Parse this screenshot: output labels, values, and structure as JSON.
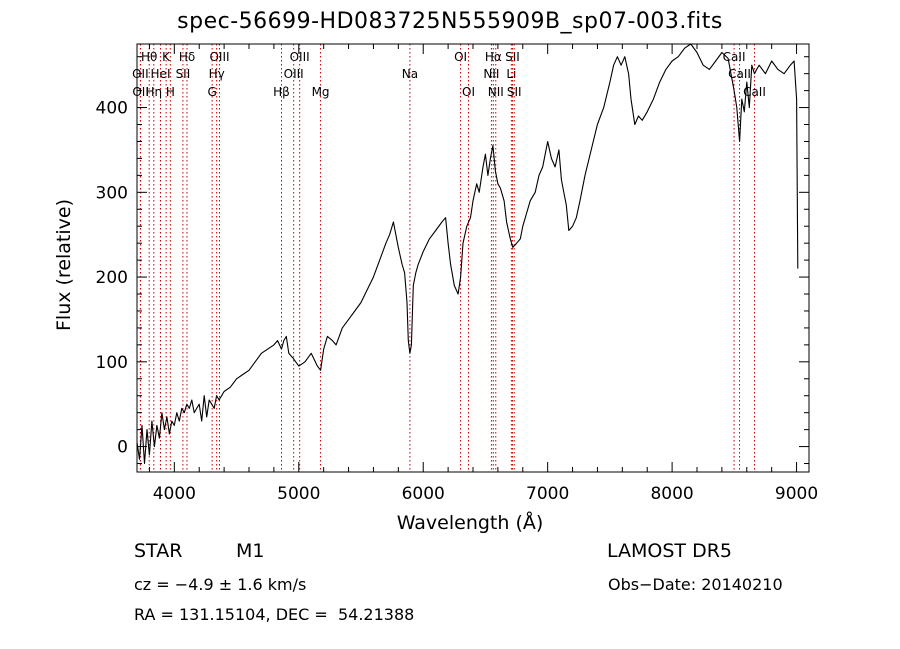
{
  "chart_data": {
    "type": "line",
    "title": "spec-56699-HD083725N555909B_sp07-003.fits",
    "xlabel": "Wavelength (Å)",
    "ylabel": "Flux (relative)",
    "xlim": [
      3700,
      9100
    ],
    "ylim": [
      -30,
      475
    ],
    "xticks": [
      4000,
      5000,
      6000,
      7000,
      8000,
      9000
    ],
    "yticks": [
      0,
      100,
      200,
      300,
      400
    ],
    "grid": false,
    "series": [
      {
        "color": "#000000",
        "x": [
          3700,
          3720,
          3740,
          3760,
          3780,
          3800,
          3820,
          3840,
          3860,
          3880,
          3900,
          3920,
          3940,
          3960,
          3980,
          4000,
          4020,
          4040,
          4060,
          4080,
          4100,
          4120,
          4140,
          4160,
          4180,
          4200,
          4220,
          4240,
          4260,
          4280,
          4300,
          4320,
          4340,
          4360,
          4380,
          4400,
          4450,
          4500,
          4550,
          4600,
          4650,
          4700,
          4750,
          4800,
          4830,
          4861,
          4880,
          4900,
          4920,
          4950,
          5000,
          5050,
          5100,
          5150,
          5175,
          5200,
          5230,
          5270,
          5300,
          5350,
          5400,
          5450,
          5500,
          5550,
          5600,
          5650,
          5700,
          5730,
          5760,
          5800,
          5830,
          5850,
          5870,
          5880,
          5893,
          5905,
          5920,
          5940,
          5960,
          6000,
          6050,
          6100,
          6150,
          6180,
          6200,
          6220,
          6250,
          6280,
          6300,
          6320,
          6350,
          6380,
          6400,
          6430,
          6450,
          6480,
          6500,
          6520,
          6540,
          6560,
          6580,
          6600,
          6620,
          6650,
          6670,
          6700,
          6720,
          6750,
          6780,
          6800,
          6830,
          6860,
          6900,
          6930,
          6960,
          7000,
          7030,
          7060,
          7090,
          7110,
          7130,
          7150,
          7170,
          7200,
          7230,
          7260,
          7300,
          7350,
          7400,
          7450,
          7500,
          7530,
          7560,
          7590,
          7620,
          7650,
          7670,
          7700,
          7730,
          7760,
          7800,
          7850,
          7900,
          7950,
          8000,
          8050,
          8100,
          8150,
          8200,
          8250,
          8300,
          8350,
          8400,
          8450,
          8498,
          8520,
          8542,
          8560,
          8580,
          8600,
          8620,
          8640,
          8662,
          8680,
          8700,
          8750,
          8800,
          8850,
          8900,
          8950,
          8980,
          9000,
          9010
        ],
        "y": [
          5,
          -15,
          25,
          -20,
          20,
          -10,
          30,
          0,
          25,
          10,
          40,
          20,
          35,
          15,
          30,
          25,
          40,
          30,
          45,
          40,
          50,
          45,
          55,
          40,
          45,
          50,
          30,
          60,
          35,
          55,
          50,
          45,
          60,
          55,
          60,
          65,
          70,
          80,
          85,
          90,
          100,
          110,
          115,
          120,
          125,
          115,
          125,
          130,
          110,
          105,
          95,
          100,
          110,
          95,
          90,
          115,
          130,
          125,
          120,
          140,
          150,
          160,
          170,
          185,
          200,
          220,
          240,
          250,
          265,
          235,
          215,
          205,
          170,
          125,
          110,
          120,
          190,
          205,
          215,
          230,
          245,
          255,
          265,
          270,
          240,
          215,
          190,
          180,
          200,
          240,
          260,
          270,
          290,
          310,
          300,
          330,
          345,
          320,
          340,
          355,
          325,
          310,
          305,
          290,
          265,
          245,
          235,
          240,
          245,
          260,
          275,
          290,
          300,
          320,
          330,
          360,
          340,
          330,
          350,
          315,
          300,
          285,
          255,
          260,
          270,
          290,
          320,
          350,
          380,
          400,
          430,
          450,
          460,
          450,
          460,
          440,
          410,
          380,
          390,
          385,
          395,
          410,
          430,
          445,
          455,
          460,
          470,
          475,
          465,
          450,
          445,
          455,
          465,
          458,
          420,
          400,
          360,
          410,
          395,
          430,
          400,
          450,
          440,
          445,
          450,
          440,
          455,
          445,
          440,
          450,
          455,
          410,
          210
        ]
      }
    ],
    "lines": [
      {
        "label": "Hθ",
        "x": 3798,
        "row": 1
      },
      {
        "label": "K",
        "x": 3934,
        "row": 1
      },
      {
        "label": "Hδ",
        "x": 4102,
        "row": 1
      },
      {
        "label": "OIII",
        "x": 4363,
        "row": 1
      },
      {
        "label": "OIII",
        "x": 5007,
        "row": 1
      },
      {
        "label": "OI",
        "x": 6300,
        "row": 1
      },
      {
        "label": "Hα",
        "x": 6563,
        "row": 1
      },
      {
        "label": "SII",
        "x": 6717,
        "row": 1
      },
      {
        "label": "CaII",
        "x": 8498,
        "row": 1
      },
      {
        "label": "OII",
        "x": 3727,
        "row": 2
      },
      {
        "label": "HeI",
        "x": 3889,
        "row": 2
      },
      {
        "label": "SII",
        "x": 4069,
        "row": 2
      },
      {
        "label": "Hγ",
        "x": 4340,
        "row": 2
      },
      {
        "label": "OIII",
        "x": 4959,
        "row": 2
      },
      {
        "label": "Na",
        "x": 5893,
        "row": 2
      },
      {
        "label": "NII",
        "x": 6548,
        "row": 2
      },
      {
        "label": "Li",
        "x": 6708,
        "row": 2
      },
      {
        "label": "CaII",
        "x": 8542,
        "row": 2
      },
      {
        "label": "OII",
        "x": 3729,
        "row": 3
      },
      {
        "label": "Hη",
        "x": 3835,
        "row": 3
      },
      {
        "label": "H",
        "x": 3968,
        "row": 3
      },
      {
        "label": "G",
        "x": 4304,
        "row": 3
      },
      {
        "label": "Hβ",
        "x": 4861,
        "row": 3
      },
      {
        "label": "Mg",
        "x": 5175,
        "row": 3
      },
      {
        "label": "OI",
        "x": 6364,
        "row": 3
      },
      {
        "label": "NII",
        "x": 6583,
        "row": 3
      },
      {
        "label": "SII",
        "x": 6731,
        "row": 3
      },
      {
        "label": "CaII",
        "x": 8662,
        "row": 3
      }
    ],
    "line_color": "#cc0000"
  },
  "info": {
    "class": "STAR",
    "subclass": "M1",
    "survey": "LAMOST DR5",
    "cz": "cz = −4.9 ± 1.6 km/s",
    "obsdate": "Obs−Date: 20140210",
    "radec": "RA = 131.15104, DEC =  54.21388"
  }
}
